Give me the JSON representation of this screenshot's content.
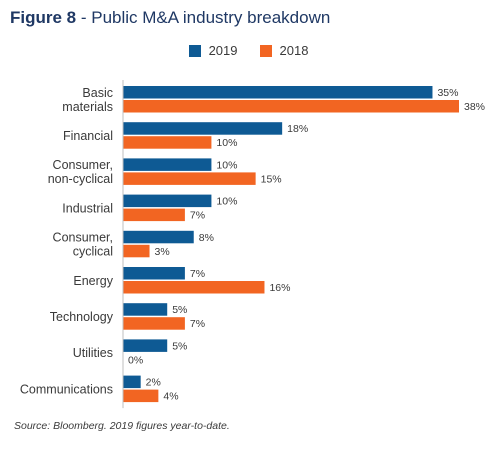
{
  "header": {
    "figure_label": "Figure 8",
    "separator": " - ",
    "title": "Public M&A industry breakdown"
  },
  "source_note": "Source: Bloomberg. 2019 figures year-to-date.",
  "colors": {
    "2019": "#0e5a94",
    "2018": "#f26522",
    "title": "#1f3864"
  },
  "chart_data": {
    "type": "bar",
    "orientation": "horizontal",
    "title": "Public M&A industry breakdown",
    "categories": [
      [
        "Basic",
        "materials"
      ],
      [
        "Financial"
      ],
      [
        "Consumer,",
        "non-cyclical"
      ],
      [
        "Industrial"
      ],
      [
        "Consumer,",
        "cyclical"
      ],
      [
        "Energy"
      ],
      [
        "Technology"
      ],
      [
        "Utilities"
      ],
      [
        "Communications"
      ]
    ],
    "series": [
      {
        "name": "2019",
        "values": [
          35,
          18,
          10,
          10,
          8,
          7,
          5,
          5,
          2
        ],
        "labels": [
          "35%",
          "18%",
          "10%",
          "10%",
          "8%",
          "7%",
          "5%",
          "5%",
          "2%"
        ]
      },
      {
        "name": "2018",
        "values": [
          38,
          10,
          15,
          7,
          3,
          16,
          7,
          0,
          4
        ],
        "labels": [
          "38%",
          "10%",
          "15%",
          "7%",
          "3%",
          "16%",
          "7%",
          "0%",
          "4%"
        ]
      }
    ],
    "xlim": [
      0,
      38
    ],
    "legend_position": "top-center",
    "grid": false
  }
}
